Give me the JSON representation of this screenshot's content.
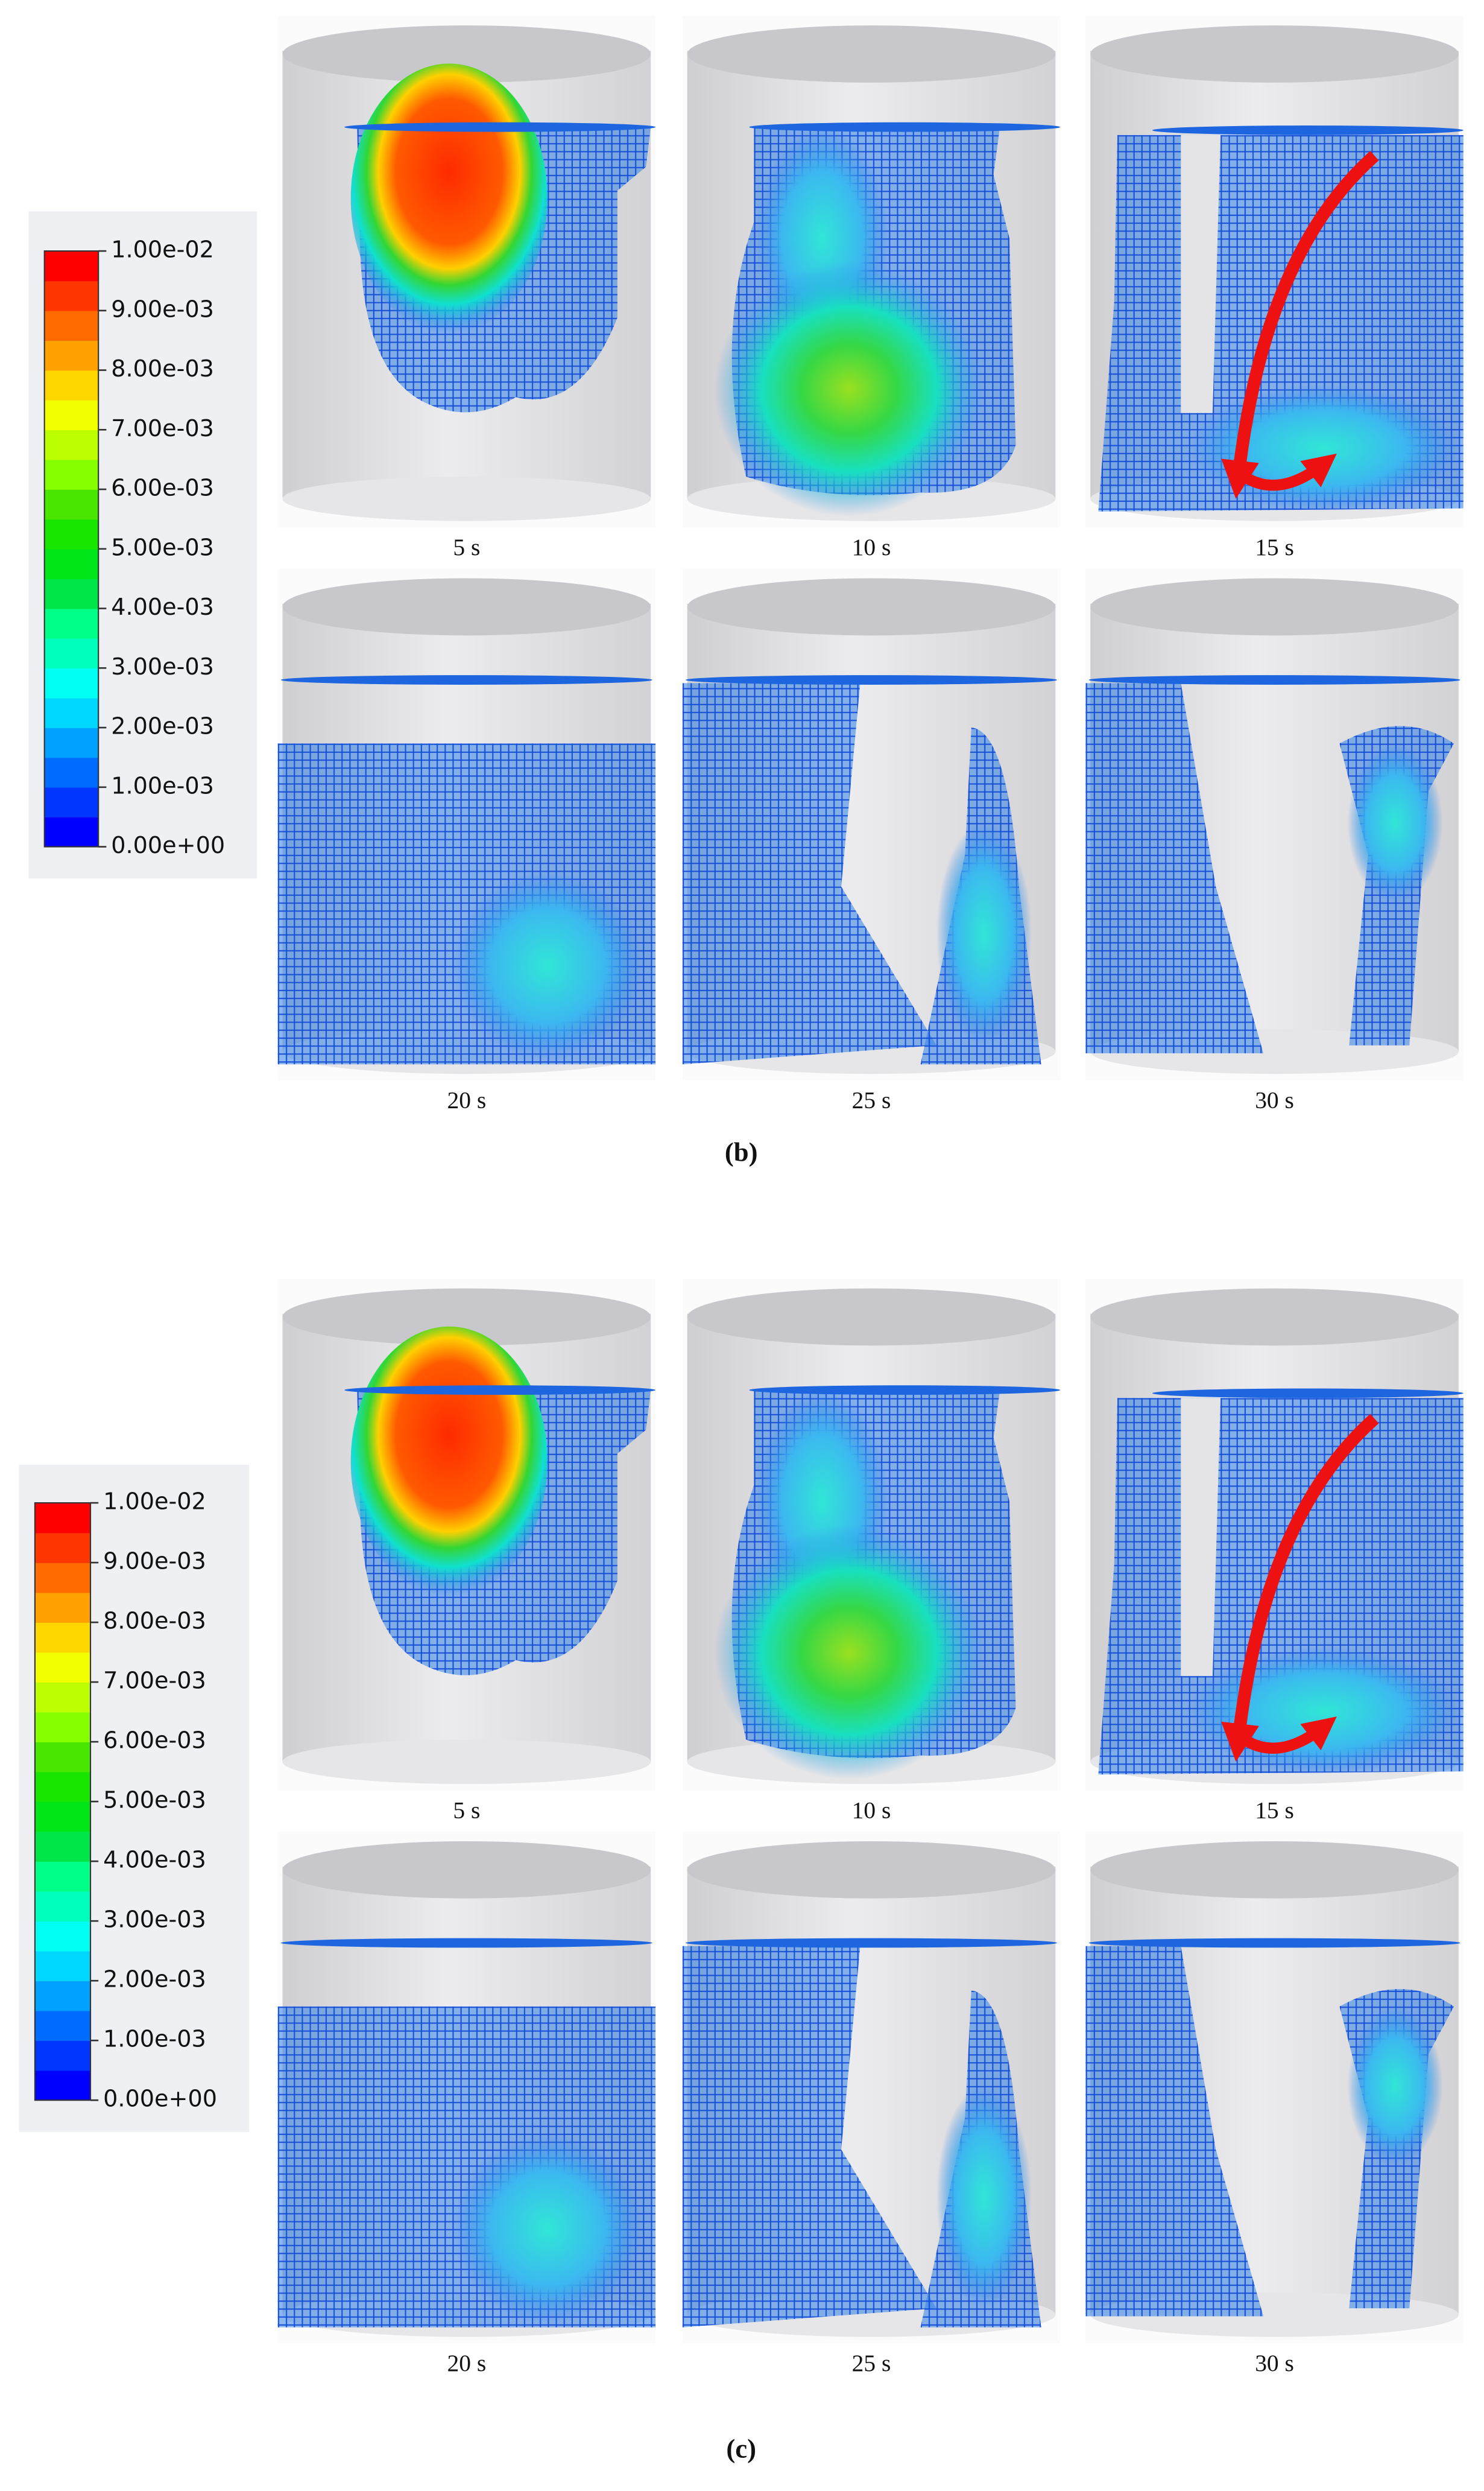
{
  "panels": [
    {
      "label": "(b)",
      "legend": [
        "1.00e-02",
        "9.00e-03",
        "8.00e-03",
        "7.00e-03",
        "6.00e-03",
        "5.00e-03",
        "4.00e-03",
        "3.00e-03",
        "2.00e-03",
        "1.00e-03",
        "0.00e+00"
      ],
      "frames": [
        {
          "time": "5 s"
        },
        {
          "time": "10 s"
        },
        {
          "time": "15 s"
        },
        {
          "time": "20 s"
        },
        {
          "time": "25 s"
        },
        {
          "time": "30 s"
        }
      ]
    },
    {
      "label": "(c)",
      "legend": [
        "1.00e-02",
        "9.00e-03",
        "8.00e-03",
        "7.00e-03",
        "6.00e-03",
        "5.00e-03",
        "4.00e-03",
        "3.00e-03",
        "2.00e-03",
        "1.00e-03",
        "0.00e+00"
      ],
      "frames": [
        {
          "time": "5 s"
        },
        {
          "time": "10 s"
        },
        {
          "time": "15 s"
        },
        {
          "time": "20 s"
        },
        {
          "time": "25 s"
        },
        {
          "time": "30 s"
        }
      ]
    }
  ]
}
